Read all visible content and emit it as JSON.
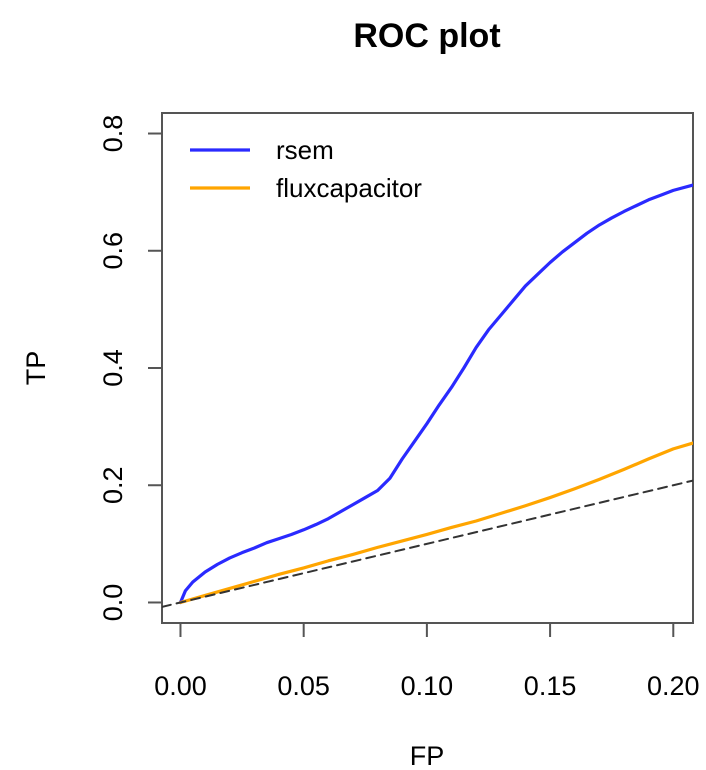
{
  "chart_data": {
    "type": "line",
    "title": "ROC plot",
    "xlabel": "FP",
    "ylabel": "TP",
    "xlim": [
      -0.0075,
      0.208
    ],
    "ylim": [
      -0.035,
      0.835
    ],
    "xticks": [
      0.0,
      0.05,
      0.1,
      0.15,
      0.2
    ],
    "xtick_labels": [
      "0.00",
      "0.05",
      "0.10",
      "0.15",
      "0.20"
    ],
    "yticks": [
      0.0,
      0.2,
      0.4,
      0.6,
      0.8
    ],
    "ytick_labels": [
      "0.0",
      "0.2",
      "0.4",
      "0.6",
      "0.8"
    ],
    "grid": false,
    "legend_position": "top-left",
    "series": [
      {
        "name": "rsem",
        "color": "#2a2aff",
        "points": [
          [
            0.0,
            0.0
          ],
          [
            0.002,
            0.02
          ],
          [
            0.005,
            0.035
          ],
          [
            0.01,
            0.052
          ],
          [
            0.015,
            0.065
          ],
          [
            0.02,
            0.076
          ],
          [
            0.025,
            0.085
          ],
          [
            0.03,
            0.093
          ],
          [
            0.035,
            0.102
          ],
          [
            0.04,
            0.109
          ],
          [
            0.045,
            0.116
          ],
          [
            0.05,
            0.124
          ],
          [
            0.055,
            0.133
          ],
          [
            0.06,
            0.143
          ],
          [
            0.065,
            0.155
          ],
          [
            0.07,
            0.167
          ],
          [
            0.075,
            0.179
          ],
          [
            0.08,
            0.191
          ],
          [
            0.085,
            0.212
          ],
          [
            0.09,
            0.245
          ],
          [
            0.095,
            0.275
          ],
          [
            0.1,
            0.305
          ],
          [
            0.105,
            0.337
          ],
          [
            0.11,
            0.367
          ],
          [
            0.115,
            0.4
          ],
          [
            0.12,
            0.435
          ],
          [
            0.125,
            0.465
          ],
          [
            0.13,
            0.49
          ],
          [
            0.135,
            0.515
          ],
          [
            0.14,
            0.54
          ],
          [
            0.145,
            0.56
          ],
          [
            0.15,
            0.58
          ],
          [
            0.155,
            0.598
          ],
          [
            0.16,
            0.614
          ],
          [
            0.165,
            0.63
          ],
          [
            0.17,
            0.644
          ],
          [
            0.175,
            0.656
          ],
          [
            0.18,
            0.667
          ],
          [
            0.185,
            0.677
          ],
          [
            0.19,
            0.687
          ],
          [
            0.195,
            0.695
          ],
          [
            0.2,
            0.703
          ],
          [
            0.208,
            0.712
          ]
        ]
      },
      {
        "name": "fluxcapacitor",
        "color": "#ffa500",
        "points": [
          [
            0.0,
            0.0
          ],
          [
            0.01,
            0.012
          ],
          [
            0.02,
            0.024
          ],
          [
            0.03,
            0.036
          ],
          [
            0.04,
            0.048
          ],
          [
            0.05,
            0.059
          ],
          [
            0.06,
            0.071
          ],
          [
            0.07,
            0.082
          ],
          [
            0.08,
            0.094
          ],
          [
            0.09,
            0.105
          ],
          [
            0.1,
            0.116
          ],
          [
            0.11,
            0.128
          ],
          [
            0.12,
            0.139
          ],
          [
            0.13,
            0.152
          ],
          [
            0.14,
            0.165
          ],
          [
            0.15,
            0.179
          ],
          [
            0.16,
            0.194
          ],
          [
            0.17,
            0.21
          ],
          [
            0.18,
            0.227
          ],
          [
            0.19,
            0.245
          ],
          [
            0.2,
            0.262
          ],
          [
            0.208,
            0.272
          ]
        ]
      },
      {
        "name": "",
        "color": "#333333",
        "dashed": true,
        "points": [
          [
            -0.0075,
            -0.0075
          ],
          [
            0.208,
            0.208
          ]
        ]
      }
    ]
  }
}
